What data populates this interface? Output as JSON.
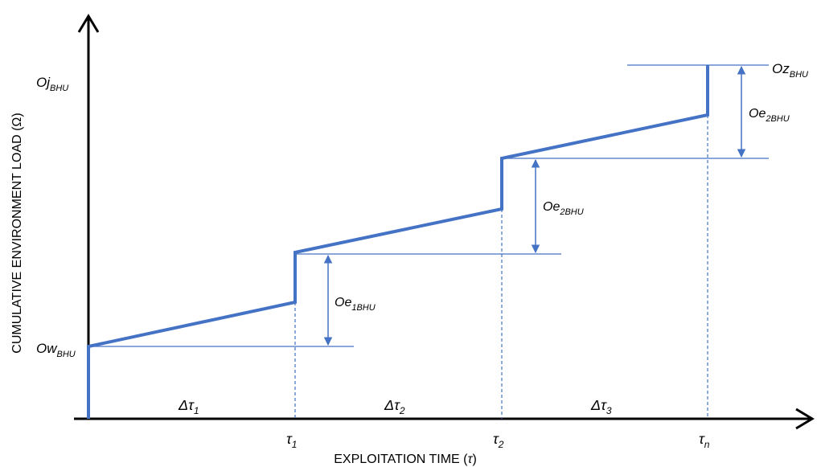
{
  "axes": {
    "x_title": "EXPLOITATION TIME (",
    "x_title_symbol": "τ",
    "x_title_close": ")",
    "y_title": "CUMULATIVE ENVIRONMENT LOAD (Ω)"
  },
  "levels": {
    "top": {
      "main": "Oj",
      "sub": "BHU"
    },
    "base": {
      "main": "Ow",
      "sub": "BHU"
    },
    "end": {
      "main": "Oz",
      "sub": "BHU"
    }
  },
  "jumps": [
    {
      "main": "Oe",
      "sub": "1BHU"
    },
    {
      "main": "Oe",
      "sub": "2BHU"
    },
    {
      "main": "Oe",
      "sub": "2BHU"
    }
  ],
  "time_points": [
    {
      "main": "τ",
      "sub": "1"
    },
    {
      "main": "τ",
      "sub": "2"
    },
    {
      "main": "τ",
      "sub": "n"
    }
  ],
  "intervals": [
    {
      "main": "Δτ",
      "sub": "1"
    },
    {
      "main": "Δτ",
      "sub": "2"
    },
    {
      "main": "Δτ",
      "sub": "3"
    }
  ],
  "colors": {
    "curve": "#4472c4",
    "axis": "#000000"
  }
}
